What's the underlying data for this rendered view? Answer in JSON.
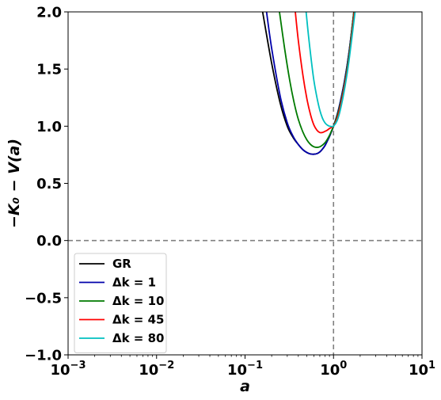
{
  "chart_data": {
    "type": "line",
    "xscale": "log",
    "xlim": [
      0.001,
      10
    ],
    "ylim": [
      -1.0,
      2.0
    ],
    "xlabel": "a",
    "ylabel": "−K₀ − V(a)",
    "x_ticks": [
      0.001,
      0.01,
      0.1,
      1,
      10
    ],
    "x_tick_labels": [
      {
        "base": "10",
        "exp": "−3"
      },
      {
        "base": "10",
        "exp": "−2"
      },
      {
        "base": "10",
        "exp": "−1"
      },
      {
        "base": "10",
        "exp": "0"
      },
      {
        "base": "10",
        "exp": "1"
      }
    ],
    "y_ticks": [
      "−1.0",
      "−0.5",
      "0.0",
      "0.5",
      "1.0",
      "1.5",
      "2.0"
    ],
    "y_tick_values": [
      -1.0,
      -0.5,
      0.0,
      0.5,
      1.0,
      1.5,
      2.0
    ],
    "reference_lines": {
      "horizontal_y": 0.0,
      "vertical_x": 1.0,
      "color": "#808080",
      "style": "dashed"
    },
    "legend_position": "lower-left",
    "series": [
      {
        "name": "GR",
        "label_math": "GR",
        "color": "#000000",
        "points": [
          [
            0.158,
            2.0
          ],
          [
            0.2,
            1.55
          ],
          [
            0.25,
            1.2
          ],
          [
            0.3,
            1.0
          ],
          [
            0.35,
            0.9
          ],
          [
            0.4,
            0.84
          ],
          [
            0.45,
            0.795
          ],
          [
            0.5,
            0.77
          ],
          [
            0.55,
            0.757
          ],
          [
            0.6,
            0.755
          ],
          [
            0.65,
            0.76
          ],
          [
            0.7,
            0.775
          ],
          [
            0.75,
            0.8
          ],
          [
            0.8,
            0.83
          ],
          [
            0.85,
            0.87
          ],
          [
            0.9,
            0.91
          ],
          [
            0.95,
            0.955
          ],
          [
            1.0,
            1.0
          ],
          [
            1.1,
            1.1
          ],
          [
            1.2,
            1.22
          ],
          [
            1.35,
            1.42
          ],
          [
            1.5,
            1.65
          ],
          [
            1.7,
            2.0
          ]
        ]
      },
      {
        "name": "Δk = 1",
        "label_math": "Δk = 1",
        "color": "#0000aa",
        "points": [
          [
            0.175,
            2.0
          ],
          [
            0.2,
            1.68
          ],
          [
            0.25,
            1.26
          ],
          [
            0.3,
            1.03
          ],
          [
            0.35,
            0.91
          ],
          [
            0.4,
            0.84
          ],
          [
            0.45,
            0.795
          ],
          [
            0.5,
            0.77
          ],
          [
            0.55,
            0.757
          ],
          [
            0.6,
            0.755
          ],
          [
            0.65,
            0.76
          ],
          [
            0.7,
            0.775
          ],
          [
            0.75,
            0.8
          ],
          [
            0.8,
            0.83
          ],
          [
            0.85,
            0.87
          ],
          [
            0.9,
            0.91
          ],
          [
            0.95,
            0.955
          ],
          [
            1.0,
            1.0
          ],
          [
            1.1,
            1.1
          ],
          [
            1.2,
            1.22
          ],
          [
            1.35,
            1.42
          ],
          [
            1.5,
            1.65
          ],
          [
            1.7,
            2.0
          ]
        ]
      },
      {
        "name": "Δk = 10",
        "label_math": "Δk = 10",
        "color": "#007a00",
        "points": [
          [
            0.245,
            2.0
          ],
          [
            0.28,
            1.68
          ],
          [
            0.32,
            1.4
          ],
          [
            0.36,
            1.2
          ],
          [
            0.4,
            1.06
          ],
          [
            0.45,
            0.95
          ],
          [
            0.5,
            0.88
          ],
          [
            0.55,
            0.84
          ],
          [
            0.6,
            0.82
          ],
          [
            0.65,
            0.815
          ],
          [
            0.7,
            0.82
          ],
          [
            0.75,
            0.835
          ],
          [
            0.8,
            0.855
          ],
          [
            0.85,
            0.885
          ],
          [
            0.9,
            0.92
          ],
          [
            0.95,
            0.96
          ],
          [
            1.0,
            1.0
          ],
          [
            1.1,
            1.09
          ],
          [
            1.2,
            1.2
          ],
          [
            1.35,
            1.4
          ],
          [
            1.5,
            1.63
          ],
          [
            1.7,
            2.0
          ]
        ]
      },
      {
        "name": "Δk = 45",
        "label_math": "Δk = 45",
        "color": "#ff0000",
        "points": [
          [
            0.37,
            2.0
          ],
          [
            0.4,
            1.75
          ],
          [
            0.45,
            1.45
          ],
          [
            0.5,
            1.24
          ],
          [
            0.55,
            1.1
          ],
          [
            0.6,
            1.01
          ],
          [
            0.65,
            0.965
          ],
          [
            0.7,
            0.945
          ],
          [
            0.75,
            0.945
          ],
          [
            0.8,
            0.955
          ],
          [
            0.85,
            0.965
          ],
          [
            0.9,
            0.98
          ],
          [
            0.95,
            0.99
          ],
          [
            1.0,
            1.0
          ],
          [
            1.1,
            1.07
          ],
          [
            1.2,
            1.18
          ],
          [
            1.35,
            1.38
          ],
          [
            1.5,
            1.6
          ],
          [
            1.72,
            2.0
          ]
        ]
      },
      {
        "name": "Δk = 80",
        "label_math": "Δk = 80",
        "color": "#00c0c0",
        "points": [
          [
            0.49,
            2.0
          ],
          [
            0.52,
            1.8
          ],
          [
            0.56,
            1.58
          ],
          [
            0.6,
            1.4
          ],
          [
            0.65,
            1.25
          ],
          [
            0.7,
            1.14
          ],
          [
            0.75,
            1.07
          ],
          [
            0.8,
            1.03
          ],
          [
            0.85,
            1.01
          ],
          [
            0.9,
            1.0
          ],
          [
            0.95,
            0.998
          ],
          [
            1.0,
            1.0
          ],
          [
            1.1,
            1.05
          ],
          [
            1.2,
            1.15
          ],
          [
            1.35,
            1.35
          ],
          [
            1.5,
            1.58
          ],
          [
            1.75,
            2.0
          ]
        ]
      }
    ]
  }
}
